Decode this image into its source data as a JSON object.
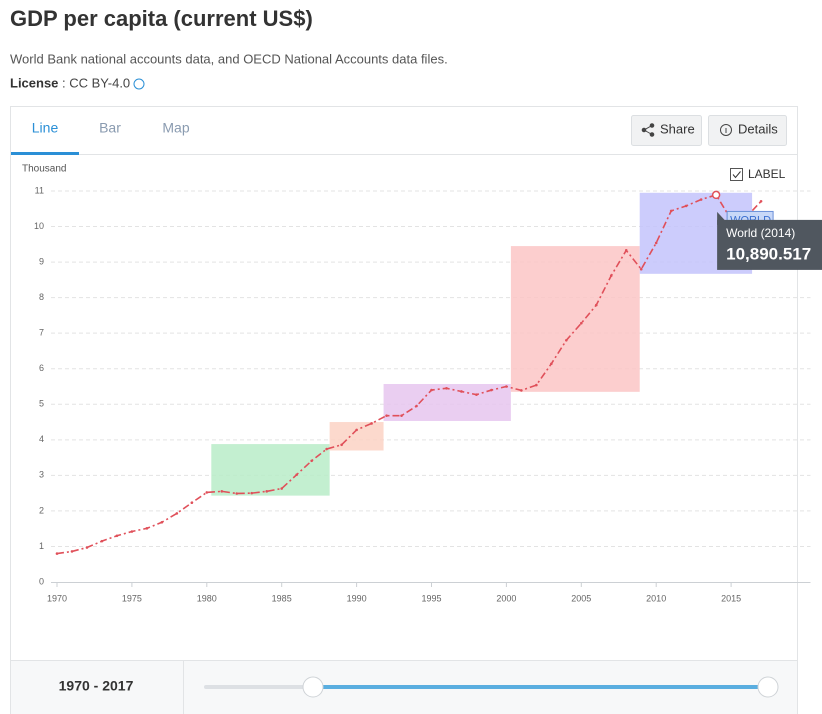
{
  "header": {
    "title": "GDP per capita (current US$)",
    "source": "World Bank national accounts data, and OECD National Accounts data files.",
    "license_label": "License",
    "license_value": ": CC BY-4.0"
  },
  "tabs": [
    "Line",
    "Bar",
    "Map"
  ],
  "buttons": [
    "Share",
    "Details"
  ],
  "chart_data": {
    "type": "line",
    "y_axis_label": "Thousand",
    "label_toggle": "LABEL",
    "x": [
      1970,
      1971,
      1972,
      1973,
      1974,
      1975,
      1976,
      1977,
      1978,
      1979,
      1980,
      1981,
      1982,
      1983,
      1984,
      1985,
      1986,
      1987,
      1988,
      1989,
      1990,
      1991,
      1992,
      1993,
      1994,
      1995,
      1996,
      1997,
      1998,
      1999,
      2000,
      2001,
      2002,
      2003,
      2004,
      2005,
      2006,
      2007,
      2008,
      2009,
      2010,
      2011,
      2012,
      2013,
      2014,
      2015,
      2016,
      2017
    ],
    "series": [
      {
        "name": "WORLD",
        "color": "#e0505a",
        "values": [
          0.8,
          0.86,
          0.97,
          1.15,
          1.3,
          1.42,
          1.51,
          1.68,
          1.93,
          2.23,
          2.52,
          2.55,
          2.49,
          2.5,
          2.55,
          2.63,
          3.02,
          3.41,
          3.74,
          3.86,
          4.28,
          4.46,
          4.68,
          4.68,
          4.95,
          5.4,
          5.45,
          5.36,
          5.27,
          5.4,
          5.5,
          5.39,
          5.54,
          6.14,
          6.8,
          7.28,
          7.79,
          8.62,
          9.33,
          8.8,
          9.54,
          10.44,
          10.58,
          10.76,
          10.890517,
          10.2,
          10.26,
          10.71
        ]
      }
    ],
    "highlights": [
      {
        "xlim": [
          1980.3,
          1988.2
        ],
        "ylim": [
          2.43,
          3.88
        ],
        "color": "#b9ecc8"
      },
      {
        "xlim": [
          1988.2,
          1991.8
        ],
        "ylim": [
          3.7,
          4.5
        ],
        "color": "#fcd2c4"
      },
      {
        "xlim": [
          1991.8,
          2000.3
        ],
        "ylim": [
          4.53,
          5.57
        ],
        "color": "#e6c6ef"
      },
      {
        "xlim": [
          2000.3,
          2008.9
        ],
        "ylim": [
          5.35,
          9.45
        ],
        "color": "#fcc5c5"
      },
      {
        "xlim": [
          2008.9,
          2016.4
        ],
        "ylim": [
          8.67,
          10.95
        ],
        "color": "#c3c3fb"
      }
    ],
    "tooltip": {
      "title": "World (2014)",
      "label": "10,890.517",
      "index": 44
    },
    "xlim": [
      1970,
      2020.3
    ],
    "ylim": [
      0,
      11
    ],
    "xticks": [
      1970,
      1975,
      1980,
      1985,
      1990,
      1995,
      2000,
      2005,
      2010,
      2015
    ],
    "yticks": [
      0,
      1,
      2,
      3,
      4,
      5,
      6,
      7,
      8,
      9,
      10,
      11
    ],
    "grid": true
  },
  "footer": {
    "range": "1970 - 2017"
  }
}
